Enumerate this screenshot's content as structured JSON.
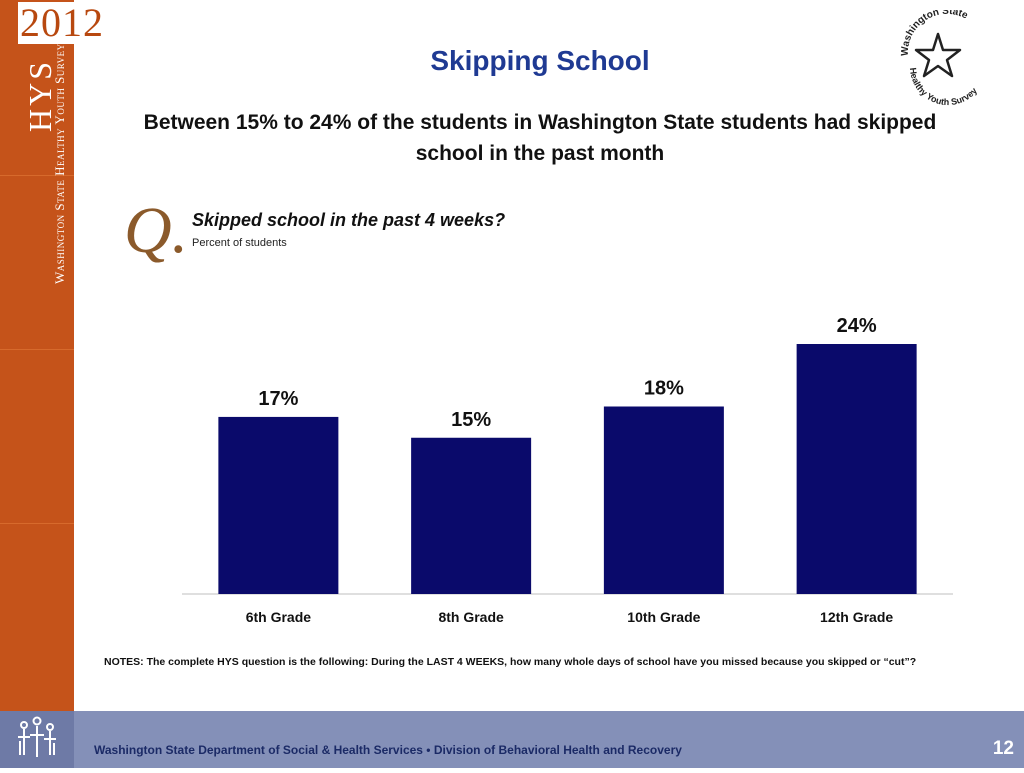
{
  "header": {
    "year": "2012",
    "brand": "HYS",
    "survey_name": "Washington State Healthy Youth Survey",
    "title": "Skipping School",
    "subtitle": "Between 15% to 24% of the students in Washington State students had skipped school in the past month",
    "logo_top_text": "Washington State",
    "logo_bottom_text": "Healthy Youth Survey"
  },
  "question": {
    "marker": "Q.",
    "text": "Skipped school in the past 4 weeks?",
    "subtext": "Percent of students"
  },
  "chart_data": {
    "type": "bar",
    "categories": [
      "6th Grade",
      "8th Grade",
      "10th Grade",
      "12th Grade"
    ],
    "values": [
      17,
      15,
      18,
      24
    ],
    "value_labels": [
      "17%",
      "15%",
      "18%",
      "24%"
    ],
    "unit": "%",
    "ylim": [
      0,
      30
    ],
    "bar_color": "#0a0a6b",
    "grid": false,
    "legend": "none"
  },
  "notes": "NOTES: The complete HYS question is the following: During the LAST 4 WEEKS, how many whole days of school have you missed because you skipped or “cut”?",
  "footer": {
    "text": "Washington State Department of Social & Health Services • Division of Behavioral Health and Recovery",
    "page_number": "12"
  },
  "colors": {
    "sidebar": "#c5531a",
    "title": "#1f3a93",
    "footer": "#8490b8"
  }
}
